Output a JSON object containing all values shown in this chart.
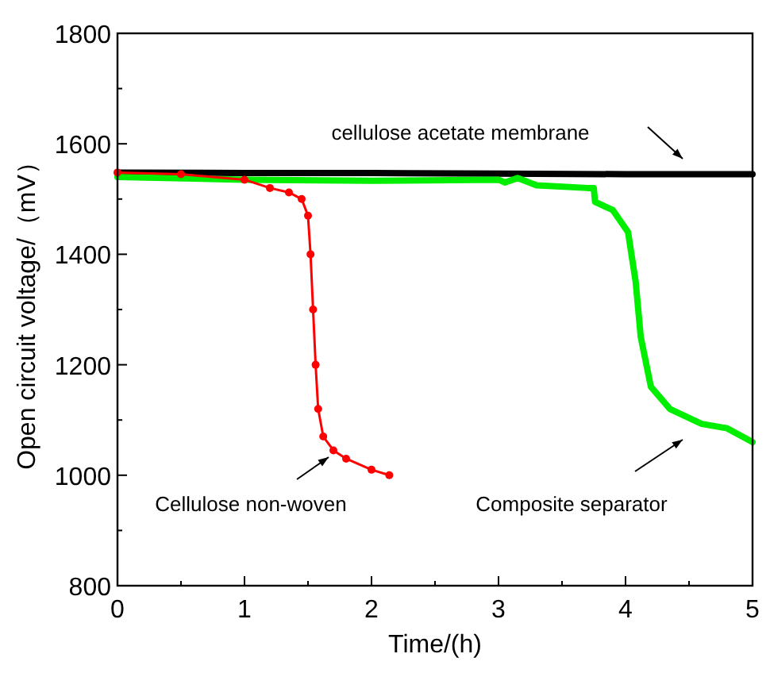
{
  "chart_data": {
    "type": "line",
    "xlabel": "Time/(h)",
    "ylabel": "Open circuit voltage/（mV）",
    "xlim": [
      0,
      5
    ],
    "ylim": [
      800,
      1800
    ],
    "xticks": [
      0,
      1,
      2,
      3,
      4,
      5
    ],
    "yticks": [
      800,
      1000,
      1200,
      1400,
      1600,
      1800
    ],
    "grid": false,
    "series": [
      {
        "color": "#000000",
        "x": [
          0,
          1,
          2,
          3,
          4,
          5
        ],
        "values": [
          1548,
          1547,
          1547,
          1546,
          1545,
          1545
        ]
      },
      {
        "color": "#00ee00",
        "x": [
          0,
          1,
          2,
          3,
          3.05,
          3.15,
          3.3,
          3.7,
          3.75,
          3.76,
          3.9,
          4.02,
          4.08,
          4.12,
          4.2,
          4.35,
          4.6,
          4.8,
          5
        ],
        "values": [
          1540,
          1535,
          1533,
          1535,
          1530,
          1538,
          1525,
          1520,
          1520,
          1495,
          1480,
          1440,
          1350,
          1250,
          1160,
          1120,
          1093,
          1085,
          1060
        ]
      },
      {
        "color": "#ff0000",
        "marker": "circle",
        "x": [
          0,
          0.5,
          1,
          1.2,
          1.35,
          1.45,
          1.5,
          1.52,
          1.54,
          1.56,
          1.58,
          1.62,
          1.7,
          1.8,
          2,
          2.14
        ],
        "values": [
          1548,
          1545,
          1535,
          1520,
          1512,
          1500,
          1470,
          1400,
          1300,
          1200,
          1120,
          1070,
          1045,
          1030,
          1010,
          1000
        ]
      }
    ],
    "annotations": [
      "cellulose acetate membrane",
      "Cellulose non-woven",
      "Composite separator"
    ]
  }
}
